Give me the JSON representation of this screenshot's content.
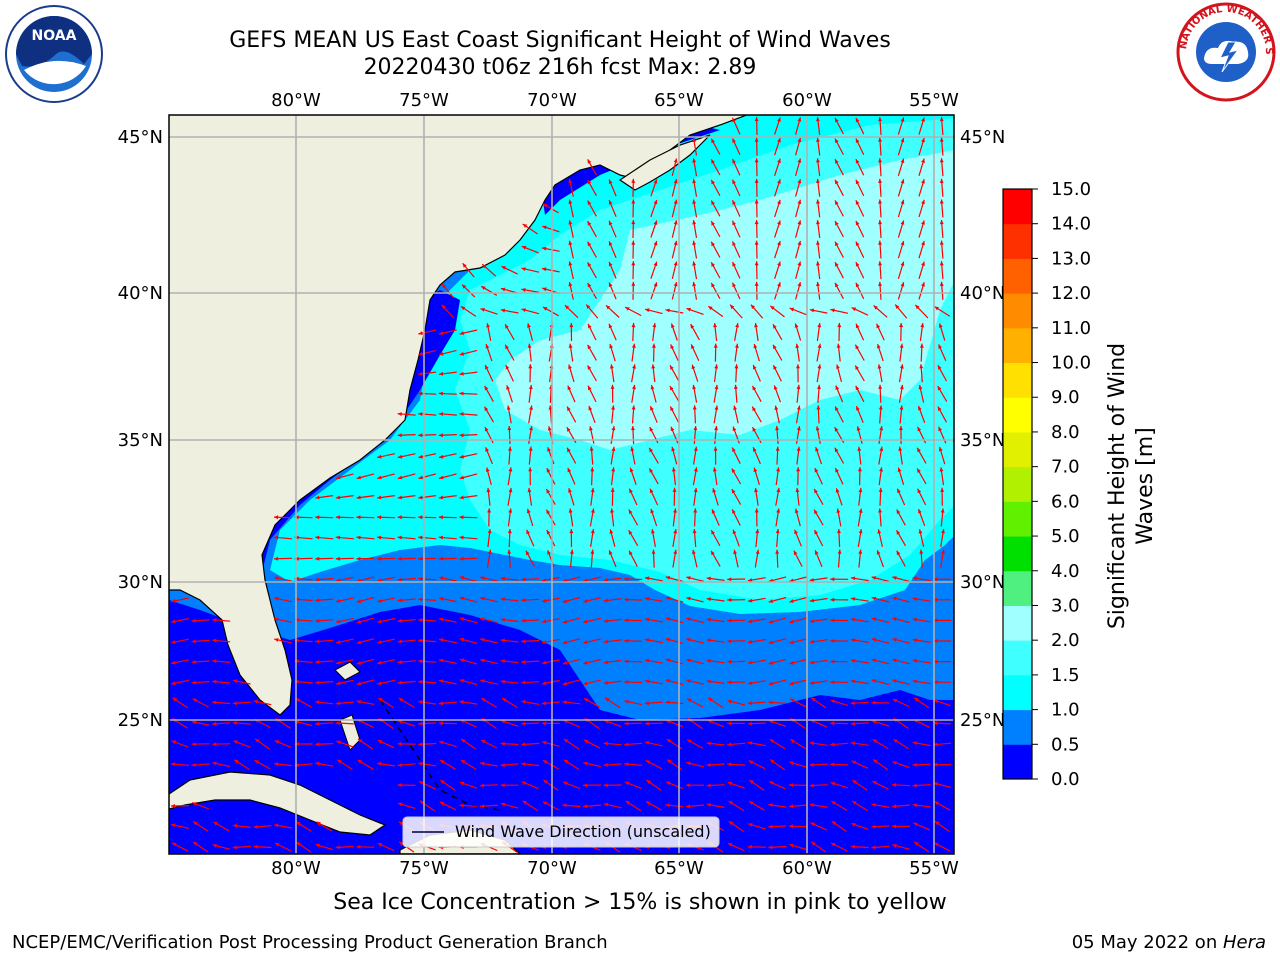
{
  "title": {
    "line1": "GEFS MEAN US East Coast Significant Height of Wind Waves",
    "line2": "20220430 t06z 216h fcst   Max: 2.89"
  },
  "axes": {
    "lon_labels": [
      "80°W",
      "75°W",
      "70°W",
      "65°W",
      "60°W",
      "55°W"
    ],
    "lat_labels": [
      "45°N",
      "40°N",
      "35°N",
      "30°N",
      "25°N"
    ]
  },
  "legend": {
    "label": "Wind Wave Direction (unscaled)"
  },
  "colorbar": {
    "label_line1": "Significant Height of Wind",
    "label_line2": "Waves [m]",
    "ticks": [
      "0.0",
      "0.5",
      "1.0",
      "1.5",
      "2.0",
      "3.0",
      "4.0",
      "5.0",
      "6.0",
      "7.0",
      "8.0",
      "9.0",
      "10.0",
      "11.0",
      "12.0",
      "13.0",
      "14.0",
      "15.0"
    ],
    "colors": [
      "#0000ff",
      "#0080ff",
      "#00ffff",
      "#40ffff",
      "#a0ffff",
      "#50f080",
      "#00e000",
      "#60f000",
      "#b0f000",
      "#e0f000",
      "#ffff00",
      "#ffe000",
      "#ffb000",
      "#ff8c00",
      "#ff6000",
      "#ff3000",
      "#ff0000"
    ]
  },
  "caption": "Sea Ice Concentration > 15% is shown in pink to yellow",
  "footer": {
    "left": "NCEP/EMC/Verification Post Processing Product Generation Branch",
    "right_date": "05 May 2022 on ",
    "right_host": "Hera"
  },
  "logos": {
    "noaa": "NOAA",
    "nws": "NATIONAL WEATHER SERVICE"
  },
  "colors": {
    "land": "#efefdf",
    "arrows": "#ff0000",
    "grid": "#b0b0b0"
  }
}
